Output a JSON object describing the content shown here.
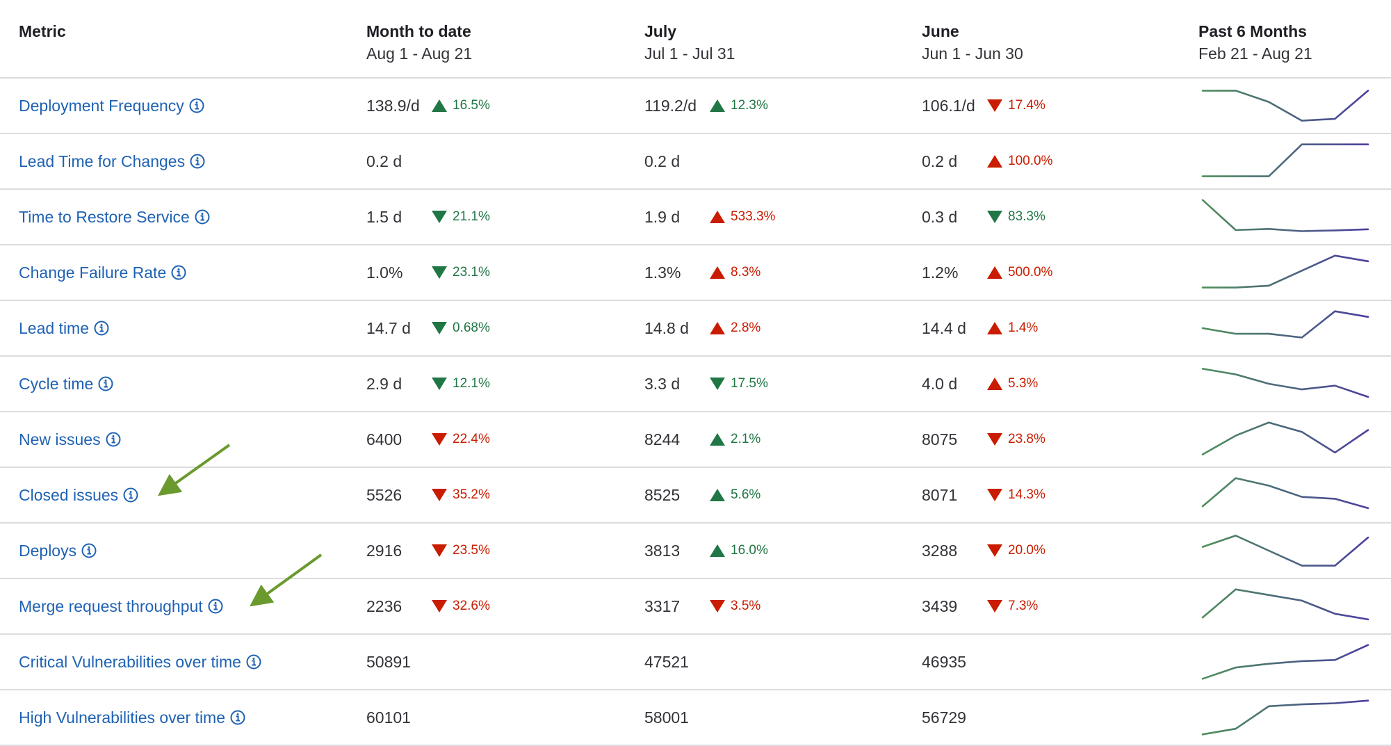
{
  "header": {
    "metric": "Metric",
    "mtd_title": "Month to date",
    "mtd_range": "Aug 1 - Aug 21",
    "jul_title": "July",
    "jul_range": "Jul 1 - Jul 31",
    "jun_title": "June",
    "jun_range": "Jun 1 - Jun 30",
    "trend_title": "Past 6 Months",
    "trend_range": "Feb 21 - Aug 21"
  },
  "colors": {
    "link": "#1f62b3",
    "good": "#217645",
    "bad": "#c91c00",
    "sparkline_start": "#4f8f5a",
    "sparkline_end": "#4b3fa0",
    "arrow": "#6a9a2e"
  },
  "rows": [
    {
      "label": "Deployment Frequency",
      "mtd": {
        "value": "138.9/d",
        "change": "16.5%",
        "dir": "up",
        "tone": "good"
      },
      "jul": {
        "value": "119.2/d",
        "change": "12.3%",
        "dir": "up",
        "tone": "good"
      },
      "jun": {
        "value": "106.1/d",
        "change": "17.4%",
        "dir": "down",
        "tone": "bad"
      },
      "trend": [
        0.9,
        0.9,
        0.6,
        0.1,
        0.15,
        0.9
      ]
    },
    {
      "label": "Lead Time for Changes",
      "mtd": {
        "value": "0.2 d",
        "change": "",
        "dir": "",
        "tone": ""
      },
      "jul": {
        "value": "0.2 d",
        "change": "",
        "dir": "",
        "tone": ""
      },
      "jun": {
        "value": "0.2 d",
        "change": "100.0%",
        "dir": "up",
        "tone": "bad"
      },
      "trend": [
        0.1,
        0.1,
        0.1,
        0.95,
        0.95,
        0.95
      ]
    },
    {
      "label": "Time to Restore Service",
      "mtd": {
        "value": "1.5 d",
        "change": "21.1%",
        "dir": "down",
        "tone": "good"
      },
      "jul": {
        "value": "1.9 d",
        "change": "533.3%",
        "dir": "up",
        "tone": "bad"
      },
      "jun": {
        "value": "0.3 d",
        "change": "83.3%",
        "dir": "down",
        "tone": "good"
      },
      "trend": [
        0.95,
        0.15,
        0.18,
        0.12,
        0.14,
        0.17
      ]
    },
    {
      "label": "Change Failure Rate",
      "mtd": {
        "value": "1.0%",
        "change": "23.1%",
        "dir": "down",
        "tone": "good"
      },
      "jul": {
        "value": "1.3%",
        "change": "8.3%",
        "dir": "up",
        "tone": "bad"
      },
      "jun": {
        "value": "1.2%",
        "change": "500.0%",
        "dir": "up",
        "tone": "bad"
      },
      "trend": [
        0.1,
        0.1,
        0.15,
        0.55,
        0.95,
        0.8
      ]
    },
    {
      "label": "Lead time",
      "mtd": {
        "value": "14.7 d",
        "change": "0.68%",
        "dir": "down",
        "tone": "good"
      },
      "jul": {
        "value": "14.8 d",
        "change": "2.8%",
        "dir": "up",
        "tone": "bad"
      },
      "jun": {
        "value": "14.4 d",
        "change": "1.4%",
        "dir": "up",
        "tone": "bad"
      },
      "trend": [
        0.5,
        0.35,
        0.35,
        0.25,
        0.95,
        0.8
      ]
    },
    {
      "label": "Cycle time",
      "mtd": {
        "value": "2.9 d",
        "change": "12.1%",
        "dir": "down",
        "tone": "good"
      },
      "jul": {
        "value": "3.3 d",
        "change": "17.5%",
        "dir": "down",
        "tone": "good"
      },
      "jun": {
        "value": "4.0 d",
        "change": "5.3%",
        "dir": "up",
        "tone": "bad"
      },
      "trend": [
        0.9,
        0.75,
        0.5,
        0.35,
        0.45,
        0.15
      ]
    },
    {
      "label": "New issues",
      "mtd": {
        "value": "6400",
        "change": "22.4%",
        "dir": "down",
        "tone": "bad"
      },
      "jul": {
        "value": "8244",
        "change": "2.1%",
        "dir": "up",
        "tone": "good"
      },
      "jun": {
        "value": "8075",
        "change": "23.8%",
        "dir": "down",
        "tone": "bad"
      },
      "trend": [
        0.1,
        0.6,
        0.95,
        0.7,
        0.15,
        0.75
      ]
    },
    {
      "label": "Closed issues",
      "mtd": {
        "value": "5526",
        "change": "35.2%",
        "dir": "down",
        "tone": "bad"
      },
      "jul": {
        "value": "8525",
        "change": "5.6%",
        "dir": "up",
        "tone": "good"
      },
      "jun": {
        "value": "8071",
        "change": "14.3%",
        "dir": "down",
        "tone": "bad"
      },
      "trend": [
        0.2,
        0.95,
        0.75,
        0.45,
        0.4,
        0.15
      ]
    },
    {
      "label": "Deploys",
      "mtd": {
        "value": "2916",
        "change": "23.5%",
        "dir": "down",
        "tone": "bad"
      },
      "jul": {
        "value": "3813",
        "change": "16.0%",
        "dir": "up",
        "tone": "good"
      },
      "jun": {
        "value": "3288",
        "change": "20.0%",
        "dir": "down",
        "tone": "bad"
      },
      "trend": [
        0.6,
        0.9,
        0.5,
        0.1,
        0.1,
        0.85
      ]
    },
    {
      "label": "Merge request throughput",
      "mtd": {
        "value": "2236",
        "change": "32.6%",
        "dir": "down",
        "tone": "bad"
      },
      "jul": {
        "value": "3317",
        "change": "3.5%",
        "dir": "down",
        "tone": "bad"
      },
      "jun": {
        "value": "3439",
        "change": "7.3%",
        "dir": "down",
        "tone": "bad"
      },
      "trend": [
        0.2,
        0.95,
        0.8,
        0.65,
        0.3,
        0.15
      ]
    },
    {
      "label": "Critical Vulnerabilities over time",
      "mtd": {
        "value": "50891",
        "change": "",
        "dir": "",
        "tone": ""
      },
      "jul": {
        "value": "47521",
        "change": "",
        "dir": "",
        "tone": ""
      },
      "jun": {
        "value": "46935",
        "change": "",
        "dir": "",
        "tone": ""
      },
      "trend": [
        0.05,
        0.35,
        0.45,
        0.52,
        0.55,
        0.95
      ]
    },
    {
      "label": "High Vulnerabilities over time",
      "mtd": {
        "value": "60101",
        "change": "",
        "dir": "",
        "tone": ""
      },
      "jul": {
        "value": "58001",
        "change": "",
        "dir": "",
        "tone": ""
      },
      "jun": {
        "value": "56729",
        "change": "",
        "dir": "",
        "tone": ""
      },
      "trend": [
        0.05,
        0.2,
        0.8,
        0.85,
        0.88,
        0.95
      ]
    }
  ]
}
